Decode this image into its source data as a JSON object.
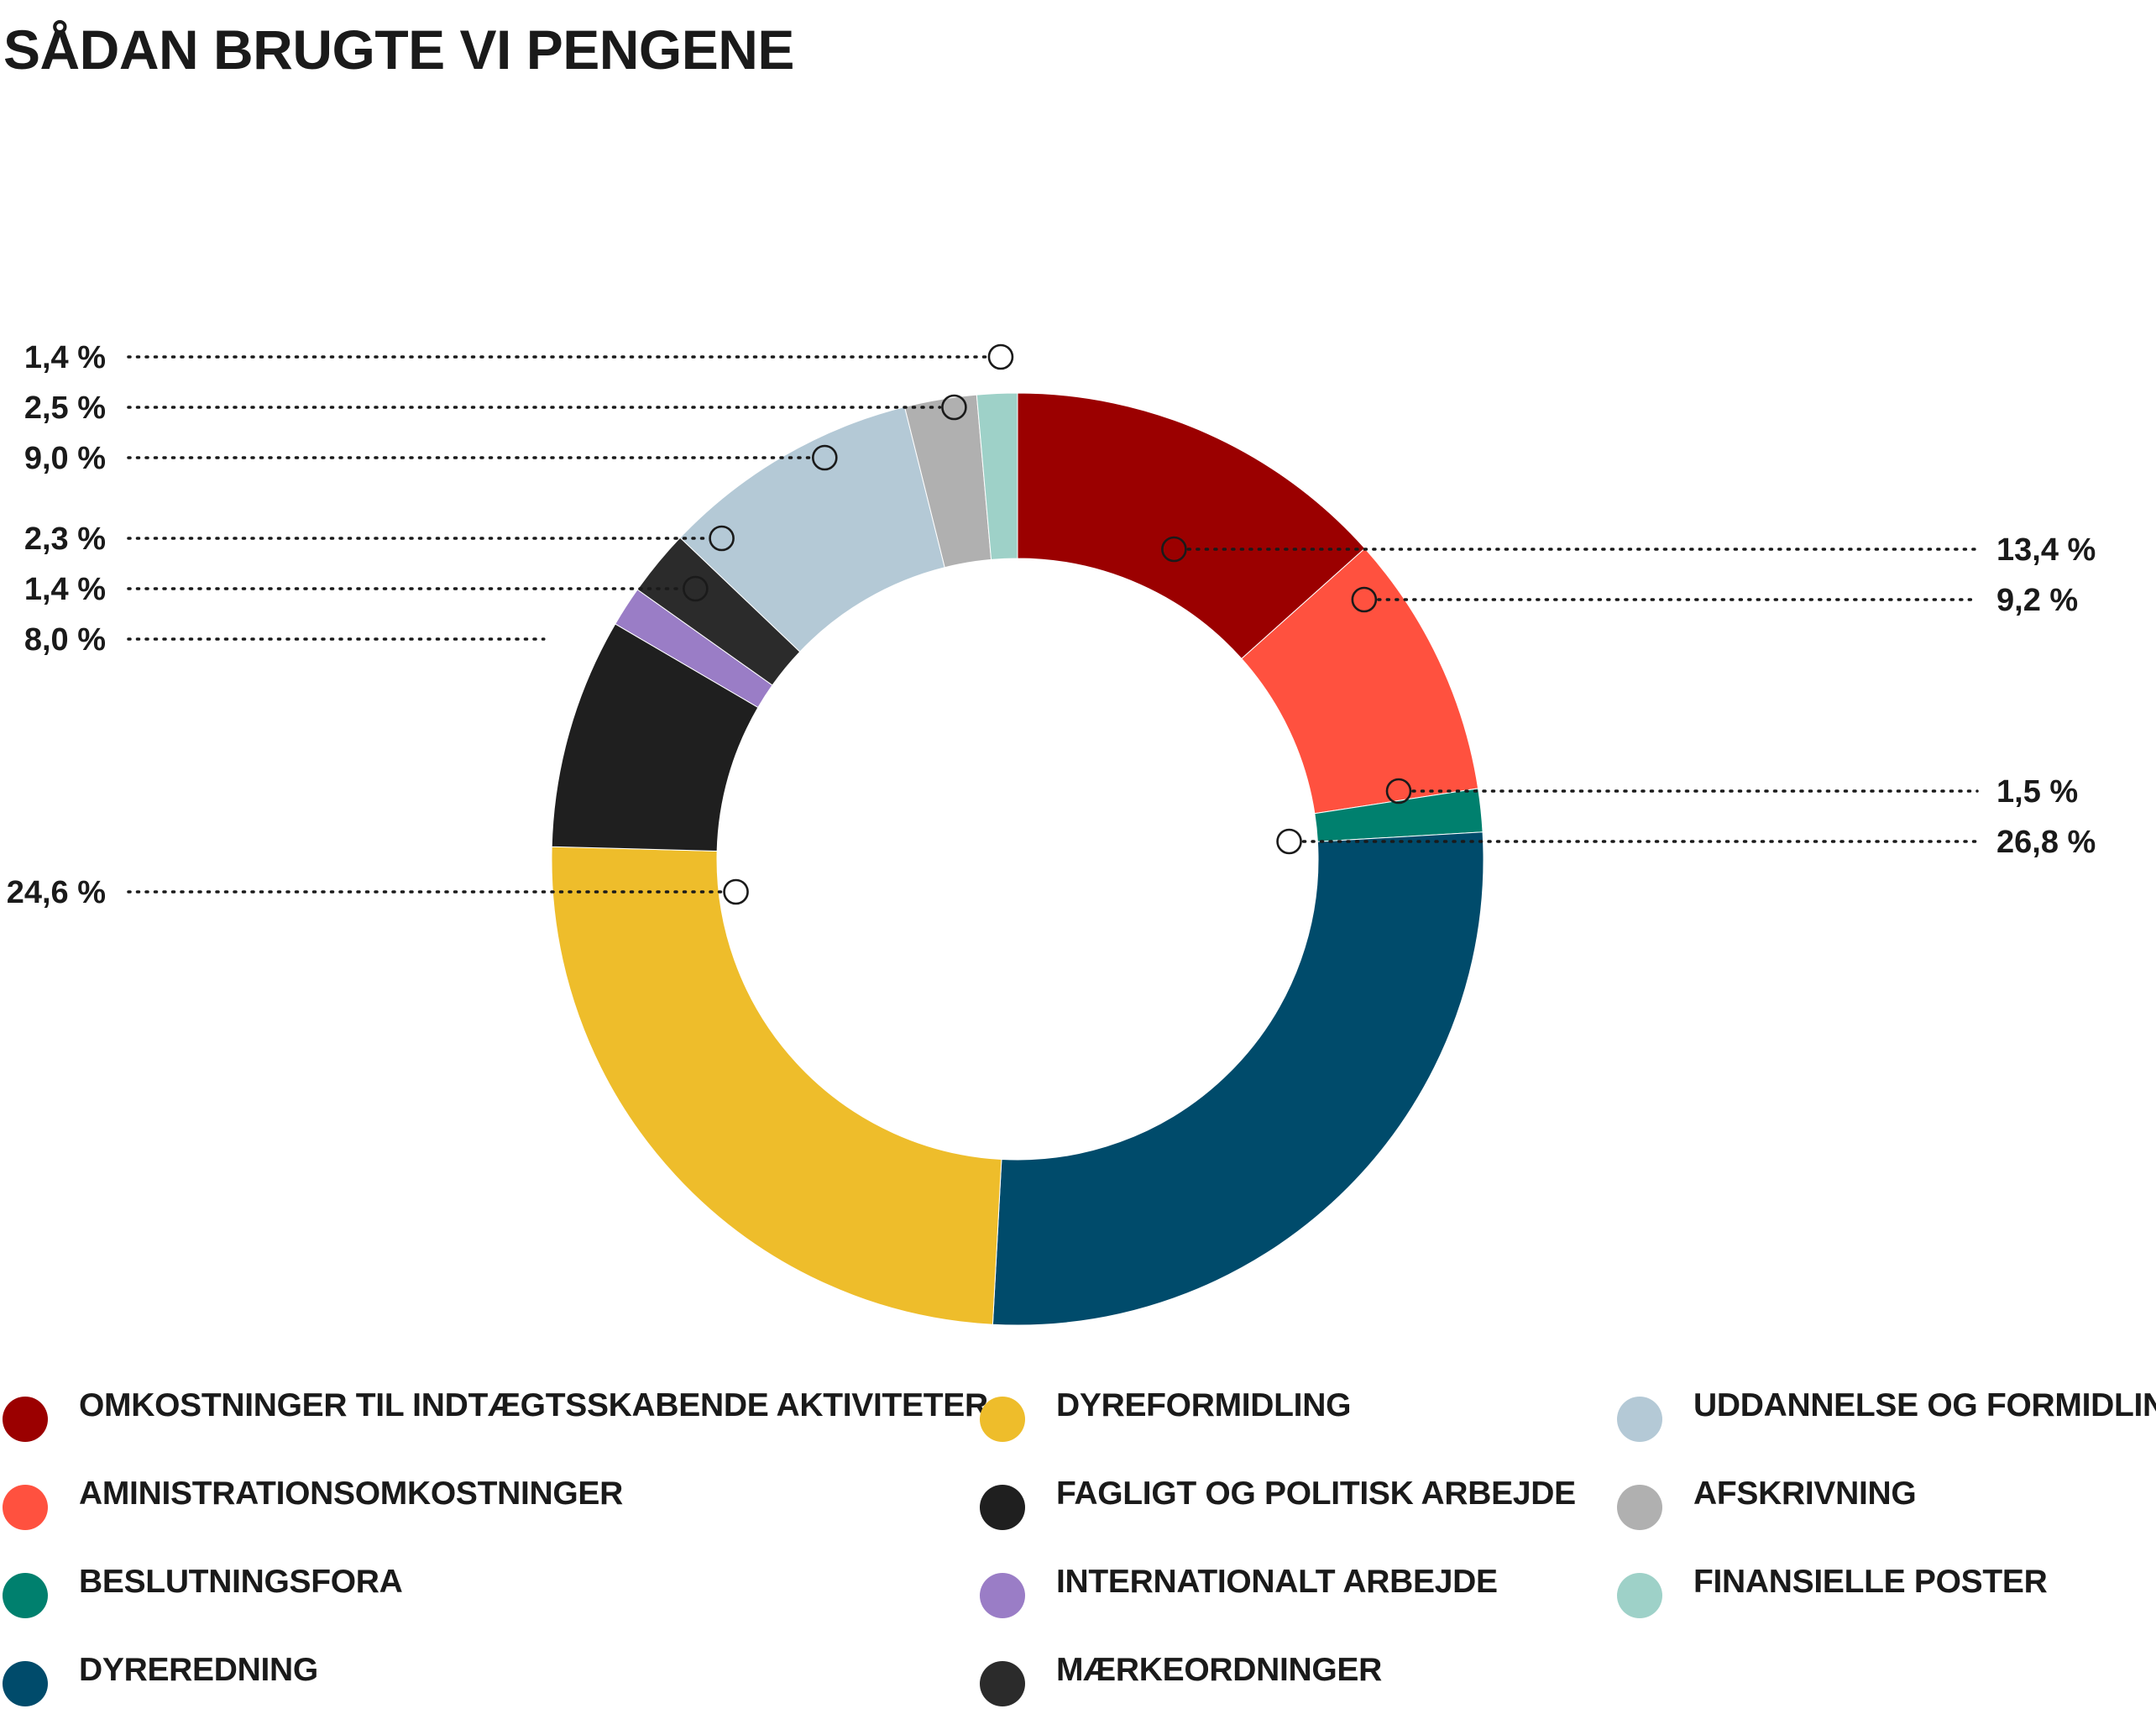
{
  "title": "SÅDAN BRUGTE VI PENGENE",
  "chart_data": {
    "type": "pie",
    "donut": true,
    "title": "SÅDAN BRUGTE VI PENGENE",
    "legend_placement": "bottom",
    "slices": [
      {
        "name": "OMKOSTNINGER TIL INDTÆGTSSKABENDE AKTIVITETER",
        "value": 13.4,
        "label": "13,4 %",
        "color": "#9b0000"
      },
      {
        "name": "AMINISTRATIONSOMKOSTNINGER",
        "value": 9.2,
        "label": "9,2 %",
        "color": "#ff513f"
      },
      {
        "name": "BESLUTNINGSFORA",
        "value": 1.5,
        "label": "1,5 %",
        "color": "#00806e"
      },
      {
        "name": "DYREREDNING",
        "value": 26.8,
        "label": "26,8 %",
        "color": "#004b6b"
      },
      {
        "name": "DYREFORMIDLING",
        "value": 24.6,
        "label": "24,6 %",
        "color": "#eebd2b"
      },
      {
        "name": "FAGLIGT OG POLITISK ARBEJDE",
        "value": 8.0,
        "label": "8,0 %",
        "color": "#1f1f1f"
      },
      {
        "name": "INTERNATIONALT ARBEJDE",
        "value": 1.4,
        "label": "1,4 %",
        "color": "#9a7dc6"
      },
      {
        "name": "MÆRKEORDNINGER",
        "value": 2.3,
        "label": "2,3 %",
        "color": "#2b2b2b"
      },
      {
        "name": "UDDANNELSE OG FORMIDLING",
        "value": 9.0,
        "label": "9,0 %",
        "color": "#b4c9d6"
      },
      {
        "name": "AFSKRIVNING",
        "value": 2.5,
        "label": "2,5 %",
        "color": "#b0b0b0"
      },
      {
        "name": "FINANSIELLE POSTER",
        "value": 1.4,
        "label": "1,4 %",
        "color": "#9ed1c8"
      }
    ]
  }
}
